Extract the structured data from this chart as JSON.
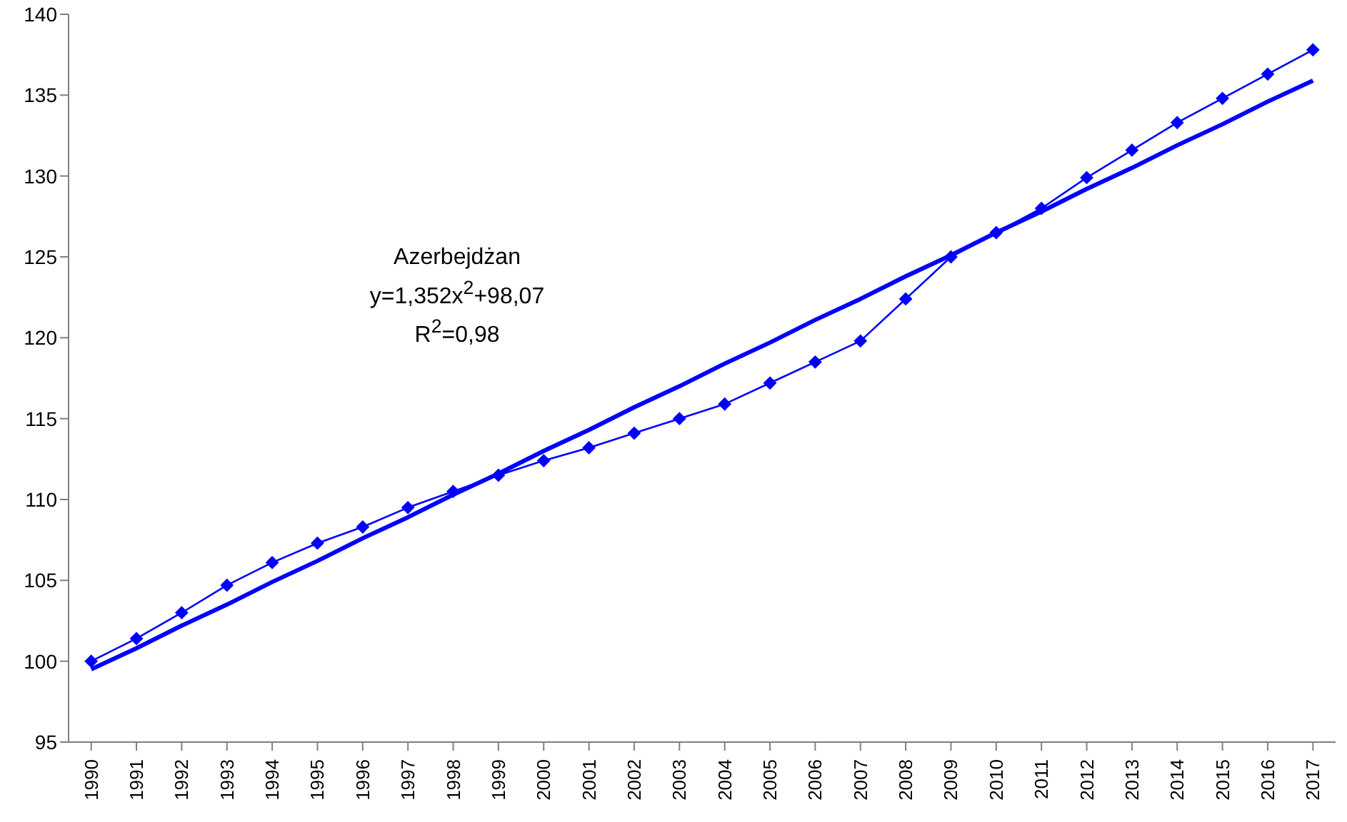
{
  "chart_data": {
    "type": "line",
    "categories": [
      "1990",
      "1991",
      "1992",
      "1993",
      "1994",
      "1995",
      "1996",
      "1997",
      "1998",
      "1999",
      "2000",
      "2001",
      "2002",
      "2003",
      "2004",
      "2005",
      "2006",
      "2007",
      "2008",
      "2009",
      "2010",
      "2011",
      "2012",
      "2013",
      "2014",
      "2015",
      "2016",
      "2017"
    ],
    "series": [
      {
        "color": "#0000ff",
        "marker": "diamond",
        "values": [
          100.0,
          101.4,
          103.0,
          104.7,
          106.1,
          107.3,
          108.3,
          109.5,
          110.5,
          111.5,
          112.4,
          113.2,
          114.1,
          115.0,
          115.9,
          117.2,
          118.5,
          119.8,
          122.4,
          125.0,
          126.5,
          128.0,
          129.9,
          131.6,
          133.3,
          134.8,
          136.3,
          137.8
        ]
      },
      {
        "type": "line",
        "color": "#0000ff",
        "marker": "none",
        "values": [
          99.5,
          100.8,
          102.2,
          103.5,
          104.9,
          106.2,
          107.6,
          108.9,
          110.3,
          111.6,
          113.0,
          114.3,
          115.7,
          117.0,
          118.4,
          119.7,
          121.1,
          122.4,
          123.8,
          125.1,
          126.5,
          127.8,
          129.2,
          130.5,
          131.9,
          133.2,
          134.6,
          135.9
        ]
      }
    ],
    "ylim": [
      95,
      140
    ],
    "yticks": [
      95,
      100,
      105,
      110,
      115,
      120,
      125,
      130,
      135,
      140
    ],
    "grid": false,
    "legend": false,
    "annotations": [
      "Azerbejdżan",
      "y=1,352x$^{2}$+98,07",
      "R$^{2}$=0,98"
    ]
  }
}
